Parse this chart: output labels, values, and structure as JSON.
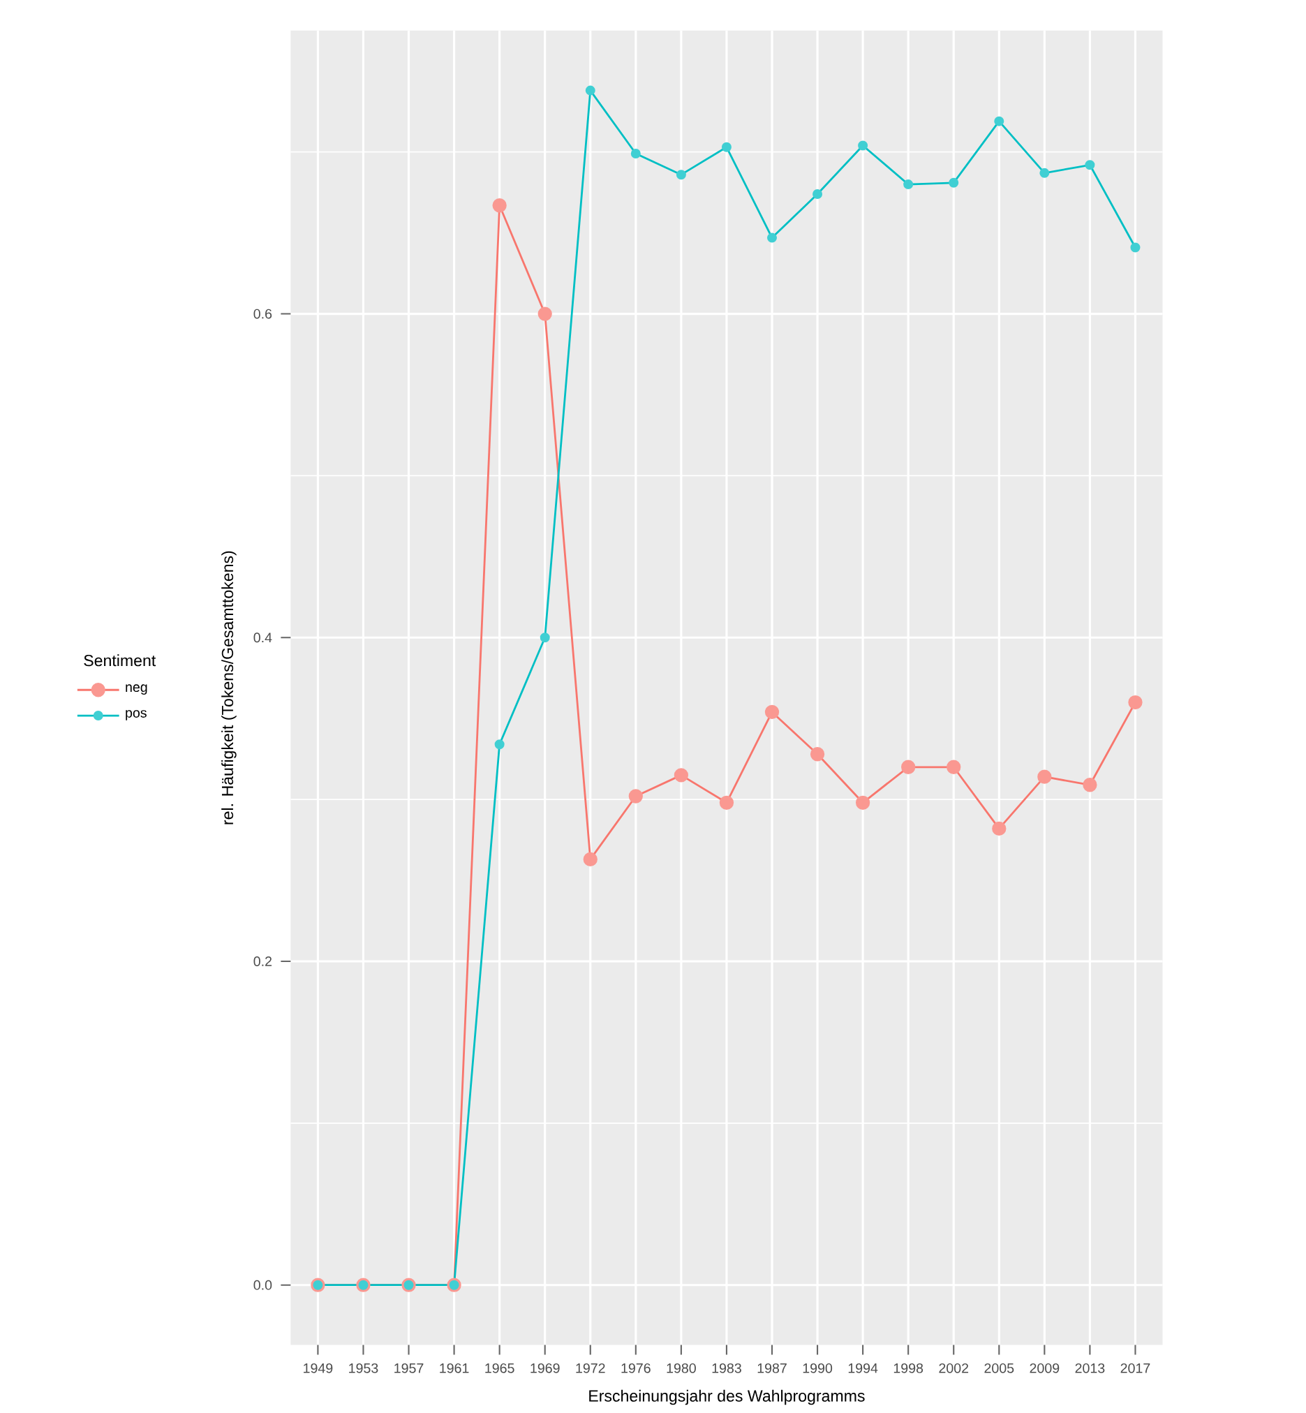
{
  "chart_data": {
    "type": "line",
    "xlabel": "Erscheinungsjahr des Wahlprogramms",
    "ylabel": "rel. Häufigkeit (Tokens/Gesamttokens)",
    "legend_title": "Sentiment",
    "categories": [
      "1949",
      "1953",
      "1957",
      "1961",
      "1965",
      "1969",
      "1972",
      "1976",
      "1980",
      "1983",
      "1987",
      "1990",
      "1994",
      "1998",
      "2002",
      "2005",
      "2009",
      "2013",
      "2017"
    ],
    "series": [
      {
        "name": "neg",
        "color": "#f8766d",
        "values": [
          0,
          0,
          0,
          0,
          0.667,
          0.6,
          0.263,
          0.302,
          0.315,
          0.298,
          0.354,
          0.328,
          0.298,
          0.32,
          0.32,
          0.282,
          0.314,
          0.309,
          0.36
        ]
      },
      {
        "name": "pos",
        "color": "#00bfc4",
        "values": [
          0,
          0,
          0,
          0,
          0.334,
          0.4,
          0.738,
          0.699,
          0.686,
          0.703,
          0.647,
          0.674,
          0.704,
          0.68,
          0.681,
          0.719,
          0.687,
          0.692,
          0.641
        ]
      }
    ],
    "ylim": [
      -0.037,
      0.775
    ],
    "yticks": [
      {
        "value": 0,
        "label": "0.0"
      },
      0.2,
      0.4,
      0.6
    ],
    "grid": true,
    "legend": "left",
    "marker": "circle",
    "line_style": "solid"
  }
}
